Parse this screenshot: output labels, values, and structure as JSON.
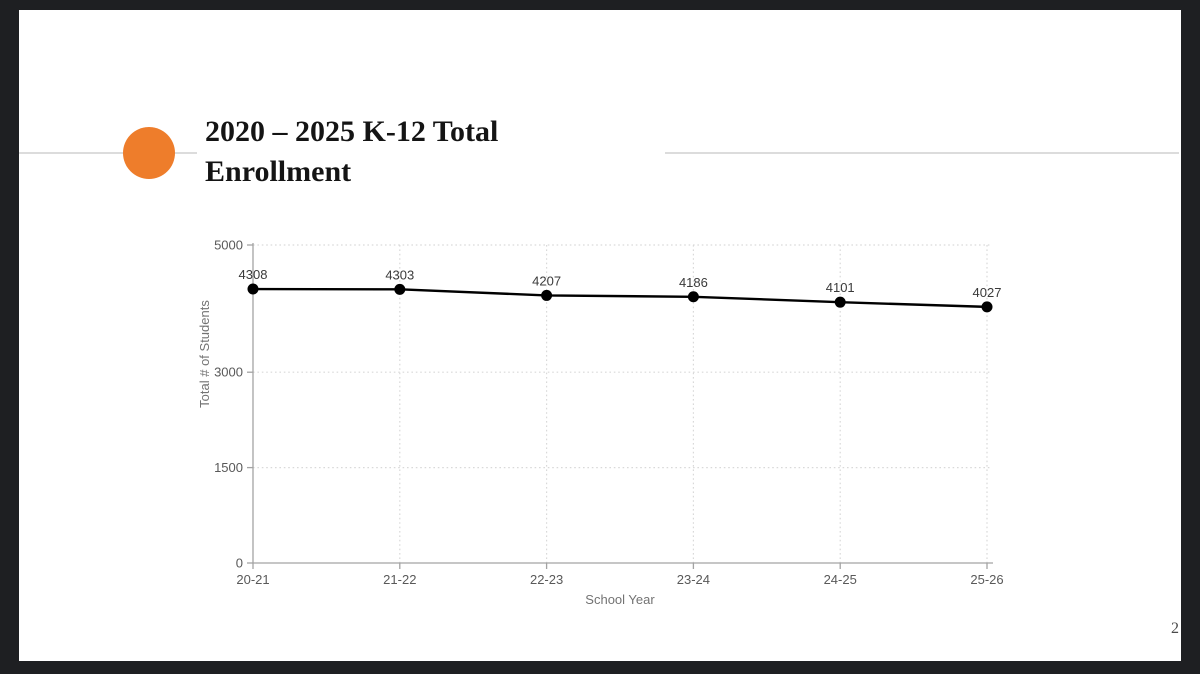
{
  "page": {
    "number": "2"
  },
  "slide": {
    "title_line1": "2020 – 2025 K-12 Total",
    "title_line2": "Enrollment",
    "accent_color": "#EE7D2B"
  },
  "chart_data": {
    "type": "line",
    "title": "",
    "categories": [
      "20-21",
      "21-22",
      "22-23",
      "23-24",
      "24-25",
      "25-26"
    ],
    "values": [
      4308,
      4303,
      4207,
      4186,
      4101,
      4027
    ],
    "data_labels": [
      "4308",
      "4303",
      "4207",
      "4186",
      "4101",
      "4027"
    ],
    "xlabel": "School Year",
    "ylabel": "Total # of Students",
    "ylim": [
      0,
      5000
    ],
    "yticks": [
      0,
      1500,
      3000,
      5000
    ],
    "grid": true,
    "legend": "none",
    "line_color": "#000000",
    "marker_color": "#000000",
    "gridline_color": "#d9d9d9",
    "axis_color": "#a3a3a3"
  }
}
